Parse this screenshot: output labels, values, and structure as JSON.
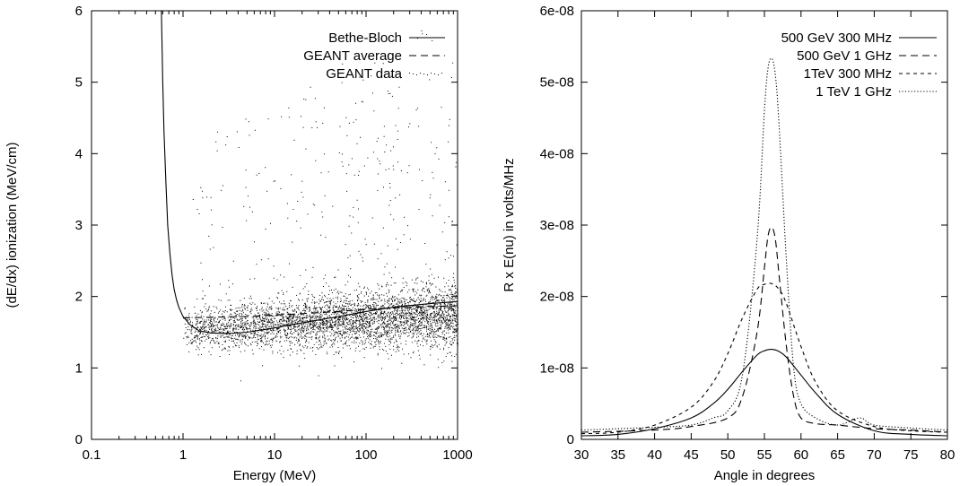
{
  "chart_data": [
    {
      "type": "scatter",
      "xlabel": "Energy (MeV)",
      "ylabel": "(dE/dx) ionization (MeV/cm)",
      "xscale": "log",
      "xlim": [
        0.1,
        1000
      ],
      "ylim": [
        0,
        6
      ],
      "xticks": [
        "0.1",
        "1",
        "10",
        "100",
        "1000"
      ],
      "yticks": [
        "0",
        "1",
        "2",
        "3",
        "4",
        "5",
        "6"
      ],
      "legend_position": "top-right",
      "series": [
        {
          "name": "Bethe-Bloch",
          "style": "solid",
          "x": [
            0.58,
            0.6,
            0.62,
            0.65,
            0.68,
            0.72,
            0.76,
            0.8,
            0.85,
            0.9,
            1.0,
            1.2,
            1.5,
            2,
            3,
            5,
            10,
            20,
            50,
            100,
            200,
            500,
            1000
          ],
          "y": [
            6.0,
            5.0,
            4.3,
            3.6,
            3.0,
            2.6,
            2.3,
            2.1,
            1.95,
            1.85,
            1.72,
            1.6,
            1.52,
            1.49,
            1.48,
            1.5,
            1.56,
            1.63,
            1.72,
            1.79,
            1.85,
            1.9,
            1.93
          ]
        },
        {
          "name": "GEANT average",
          "style": "dashed",
          "x": [
            1,
            2,
            5,
            10,
            20,
            50,
            100,
            200,
            500,
            1000
          ],
          "y": [
            1.7,
            1.71,
            1.72,
            1.74,
            1.76,
            1.79,
            1.82,
            1.84,
            1.86,
            1.87
          ]
        },
        {
          "name": "GEANT data",
          "style": "dots",
          "x_range": [
            1,
            1000
          ],
          "typical_band": [
            1.3,
            2.3
          ],
          "max_scatter": 6.0
        }
      ]
    },
    {
      "type": "line",
      "xlabel": "Angle in degrees",
      "ylabel": "R x E(nu) in volts/MHz",
      "xlim": [
        30,
        80
      ],
      "ylim": [
        0,
        6e-08
      ],
      "xticks": [
        "30",
        "35",
        "40",
        "45",
        "50",
        "55",
        "60",
        "65",
        "70",
        "75",
        "80"
      ],
      "yticks": [
        "0",
        "1e-08",
        "2e-08",
        "3e-08",
        "4e-08",
        "5e-08",
        "6e-08"
      ],
      "legend_position": "top-right",
      "series": [
        {
          "name": "500 GeV 300 MHz",
          "style": "solid",
          "x": [
            30,
            35,
            40,
            45,
            48,
            50,
            52,
            54,
            55,
            56,
            57,
            58,
            60,
            62,
            65,
            70,
            75,
            80
          ],
          "y": [
            5e-10,
            7e-10,
            1.5e-09,
            3e-09,
            5e-09,
            7e-09,
            9.5e-09,
            1.18e-08,
            1.24e-08,
            1.26e-08,
            1.23e-08,
            1.15e-08,
            9e-09,
            6.5e-09,
            3.5e-09,
            1.2e-09,
            7e-10,
            5e-10
          ]
        },
        {
          "name": "500 GeV 1 GHz",
          "style": "dashed",
          "x": [
            30,
            40,
            45,
            50,
            52,
            54,
            55,
            55.5,
            56,
            56.5,
            57,
            58,
            59,
            60,
            62,
            65,
            70,
            75,
            80
          ],
          "y": [
            1e-09,
            1.3e-09,
            1.8e-09,
            3e-09,
            6e-09,
            1.5e-08,
            2.4e-08,
            2.85e-08,
            2.97e-08,
            2.8e-08,
            2.3e-08,
            1.3e-08,
            6e-09,
            3e-09,
            2.2e-09,
            2e-09,
            1.5e-09,
            1.3e-09,
            1e-09
          ]
        },
        {
          "name": "1TeV 300 MHz",
          "style": "short-dash",
          "x": [
            30,
            35,
            40,
            45,
            48,
            50,
            52,
            54,
            55,
            56,
            57,
            58,
            60,
            62,
            65,
            70,
            75,
            80
          ],
          "y": [
            8e-10,
            1e-09,
            2e-09,
            4.5e-09,
            8e-09,
            1.2e-08,
            1.7e-08,
            2.1e-08,
            2.17e-08,
            2.18e-08,
            2.1e-08,
            1.9e-08,
            1.3e-08,
            8e-09,
            4e-09,
            1.8e-09,
            1.2e-09,
            1e-09
          ]
        },
        {
          "name": "1 TeV 1 GHz",
          "style": "dotted",
          "x": [
            30,
            35,
            40,
            45,
            48,
            50,
            52,
            54,
            55,
            55.5,
            56,
            56.5,
            57,
            58,
            59,
            60,
            62,
            65,
            68,
            70,
            75,
            80
          ],
          "y": [
            1.3e-09,
            1.5e-09,
            1.7e-09,
            2e-09,
            3e-09,
            4e-09,
            9e-09,
            2.8e-08,
            4.6e-08,
            5.2e-08,
            5.33e-08,
            5.1e-08,
            4.4e-08,
            2.5e-08,
            1e-08,
            5e-09,
            3e-09,
            2e-09,
            3e-09,
            2e-09,
            1.6e-09,
            1.3e-09
          ]
        }
      ]
    }
  ]
}
